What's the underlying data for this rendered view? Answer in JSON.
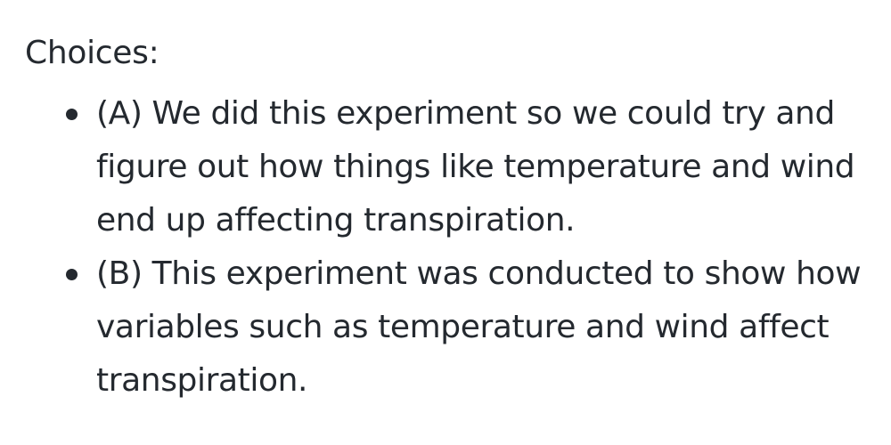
{
  "heading": "Choices:",
  "choices": [
    {
      "text": "(A) We did this experiment so we could try and figure out how things like temperature and wind end up affecting transpiration."
    },
    {
      "text": "(B) This experiment was conducted to show how variables such as temperature and wind affect transpiration."
    }
  ]
}
